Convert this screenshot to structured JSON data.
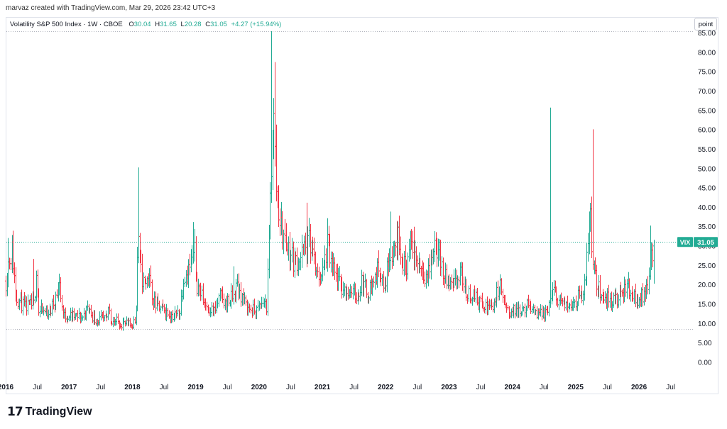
{
  "header": {
    "attribution": "marvaz created with TradingView.com, Mar 29, 2026 23:42 UTC+3"
  },
  "legend": {
    "symbol": "Volatility S&P 500 Index · 1W · CBOE",
    "o_label": "O",
    "o_value": "30.04",
    "h_label": "H",
    "h_value": "31.65",
    "l_label": "L",
    "l_value": "20.28",
    "c_label": "C",
    "c_value": "31.05",
    "change": "+4.27 (+15.94%)"
  },
  "unit_button": "point",
  "footer": {
    "brand": "TradingView",
    "logo_mark": "17"
  },
  "colors": {
    "up": "#22ab94",
    "down": "#f23645",
    "grid_dots": "#b2b5be",
    "last_line": "#22ab94"
  },
  "chart_data": {
    "type": "ohlc",
    "title": "Volatility S&P 500 Index",
    "symbol_tag": "VIX",
    "last_value_label": "31.05",
    "last_value": 31.05,
    "ylim": [
      0,
      85
    ],
    "y_ticks": [
      0,
      5,
      10,
      15,
      20,
      25,
      30,
      35,
      40,
      45,
      50,
      55,
      60,
      65,
      70,
      75,
      80,
      85
    ],
    "y_tick_labels": [
      "0.00",
      "5.00",
      "10.00",
      "15.00",
      "20.00",
      "25.00",
      "30.00",
      "35.00",
      "40.00",
      "45.00",
      "50.00",
      "55.00",
      "60.00",
      "65.00",
      "70.00",
      "75.00",
      "80.00",
      "85.00"
    ],
    "x_ticks": [
      {
        "label": "2016",
        "t": 2016.0
      },
      {
        "label": "Jul",
        "t": 2016.5
      },
      {
        "label": "2017",
        "t": 2017.0
      },
      {
        "label": "Jul",
        "t": 2017.5
      },
      {
        "label": "2018",
        "t": 2018.0
      },
      {
        "label": "Jul",
        "t": 2018.5
      },
      {
        "label": "2019",
        "t": 2019.0
      },
      {
        "label": "Jul",
        "t": 2019.5
      },
      {
        "label": "2020",
        "t": 2020.0
      },
      {
        "label": "Jul",
        "t": 2020.5
      },
      {
        "label": "2021",
        "t": 2021.0
      },
      {
        "label": "Jul",
        "t": 2021.5
      },
      {
        "label": "2022",
        "t": 2022.0
      },
      {
        "label": "Jul",
        "t": 2022.5
      },
      {
        "label": "2023",
        "t": 2023.0
      },
      {
        "label": "Jul",
        "t": 2023.5
      },
      {
        "label": "2024",
        "t": 2024.0
      },
      {
        "label": "Jul",
        "t": 2024.5
      },
      {
        "label": "2025",
        "t": 2025.0
      },
      {
        "label": "Jul",
        "t": 2025.5
      },
      {
        "label": "2026",
        "t": 2026.0
      },
      {
        "label": "Jul",
        "t": 2026.5
      }
    ],
    "range_high": 85.47,
    "range_low": 8.56,
    "price_path": [
      [
        2016.0,
        21
      ],
      [
        2016.04,
        26
      ],
      [
        2016.1,
        29
      ],
      [
        2016.16,
        17
      ],
      [
        2016.3,
        14
      ],
      [
        2016.45,
        15
      ],
      [
        2016.48,
        25
      ],
      [
        2016.52,
        13
      ],
      [
        2016.7,
        13
      ],
      [
        2016.85,
        20
      ],
      [
        2016.9,
        12
      ],
      [
        2017.0,
        12
      ],
      [
        2017.2,
        11.5
      ],
      [
        2017.3,
        14
      ],
      [
        2017.4,
        11
      ],
      [
        2017.6,
        11
      ],
      [
        2017.62,
        15
      ],
      [
        2017.65,
        11
      ],
      [
        2017.85,
        10
      ],
      [
        2017.97,
        9.5
      ],
      [
        2018.05,
        11
      ],
      [
        2018.09,
        35
      ],
      [
        2018.12,
        24
      ],
      [
        2018.18,
        20
      ],
      [
        2018.25,
        22
      ],
      [
        2018.35,
        15
      ],
      [
        2018.5,
        13
      ],
      [
        2018.65,
        12
      ],
      [
        2018.75,
        13
      ],
      [
        2018.8,
        22
      ],
      [
        2018.92,
        25
      ],
      [
        2018.98,
        28
      ],
      [
        2019.02,
        20
      ],
      [
        2019.15,
        15
      ],
      [
        2019.3,
        13
      ],
      [
        2019.38,
        17
      ],
      [
        2019.45,
        15
      ],
      [
        2019.6,
        17
      ],
      [
        2019.65,
        20
      ],
      [
        2019.8,
        14
      ],
      [
        2019.95,
        13
      ],
      [
        2020.08,
        16
      ],
      [
        2020.12,
        14
      ],
      [
        2020.17,
        40
      ],
      [
        2020.22,
        66
      ],
      [
        2020.27,
        45
      ],
      [
        2020.35,
        34
      ],
      [
        2020.45,
        30
      ],
      [
        2020.55,
        26
      ],
      [
        2020.65,
        27
      ],
      [
        2020.72,
        29
      ],
      [
        2020.82,
        32
      ],
      [
        2020.9,
        22
      ],
      [
        2021.0,
        23
      ],
      [
        2021.08,
        30
      ],
      [
        2021.15,
        24
      ],
      [
        2021.3,
        19
      ],
      [
        2021.45,
        18
      ],
      [
        2021.55,
        17
      ],
      [
        2021.62,
        21
      ],
      [
        2021.7,
        18
      ],
      [
        2021.78,
        20
      ],
      [
        2021.9,
        25
      ],
      [
        2021.97,
        18
      ],
      [
        2022.05,
        28
      ],
      [
        2022.15,
        30
      ],
      [
        2022.2,
        33
      ],
      [
        2022.3,
        24
      ],
      [
        2022.4,
        30
      ],
      [
        2022.45,
        28
      ],
      [
        2022.55,
        25
      ],
      [
        2022.65,
        22
      ],
      [
        2022.7,
        25
      ],
      [
        2022.78,
        32
      ],
      [
        2022.85,
        27
      ],
      [
        2022.95,
        21
      ],
      [
        2023.05,
        19
      ],
      [
        2023.2,
        23
      ],
      [
        2023.25,
        18
      ],
      [
        2023.4,
        17
      ],
      [
        2023.55,
        14
      ],
      [
        2023.7,
        15
      ],
      [
        2023.8,
        20
      ],
      [
        2023.9,
        13
      ],
      [
        2024.0,
        13
      ],
      [
        2024.15,
        14
      ],
      [
        2024.3,
        15
      ],
      [
        2024.4,
        12
      ],
      [
        2024.55,
        13
      ],
      [
        2024.6,
        17
      ],
      [
        2024.65,
        18
      ],
      [
        2024.75,
        16
      ],
      [
        2024.85,
        14
      ],
      [
        2024.92,
        16
      ],
      [
        2025.0,
        16
      ],
      [
        2025.1,
        18
      ],
      [
        2025.16,
        22
      ],
      [
        2025.22,
        40
      ],
      [
        2025.26,
        28
      ],
      [
        2025.32,
        20
      ],
      [
        2025.45,
        17
      ],
      [
        2025.55,
        16
      ],
      [
        2025.65,
        16
      ],
      [
        2025.75,
        18
      ],
      [
        2025.82,
        20
      ],
      [
        2025.9,
        17
      ],
      [
        2026.0,
        16
      ],
      [
        2026.05,
        17
      ],
      [
        2026.1,
        19
      ],
      [
        2026.15,
        22
      ],
      [
        2026.2,
        26.78
      ],
      [
        2026.24,
        31.05
      ]
    ],
    "spikes": [
      {
        "t": 2016.04,
        "h": 32.1
      },
      {
        "t": 2016.45,
        "h": 26.7
      },
      {
        "t": 2016.84,
        "h": 22.9
      },
      {
        "t": 2018.1,
        "h": 50.3
      },
      {
        "t": 2018.96,
        "h": 36.2
      },
      {
        "t": 2019.6,
        "h": 24.8
      },
      {
        "t": 2020.2,
        "h": 85.47
      },
      {
        "t": 2020.25,
        "h": 77.5
      },
      {
        "t": 2020.75,
        "h": 41.2
      },
      {
        "t": 2021.08,
        "h": 37.2
      },
      {
        "t": 2022.07,
        "h": 38.9
      },
      {
        "t": 2022.18,
        "h": 36.5
      },
      {
        "t": 2022.44,
        "h": 35
      },
      {
        "t": 2022.78,
        "h": 33.6
      },
      {
        "t": 2024.59,
        "h": 65.73
      },
      {
        "t": 2025.26,
        "h": 60.13
      },
      {
        "t": 2026.18,
        "h": 35.3
      }
    ]
  }
}
